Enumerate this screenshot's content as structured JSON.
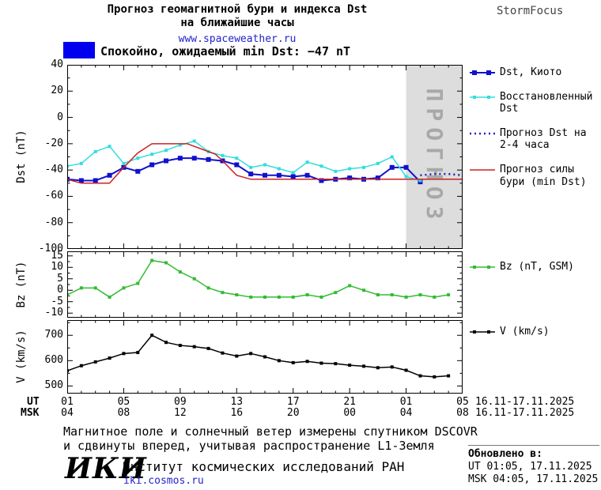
{
  "header": {
    "title_line1": "Прогноз геомагнитной бури и индекса Dst",
    "title_line2": "на ближайшие часы",
    "site": "www.spaceweather.ru",
    "brand": "StormFocus"
  },
  "status": {
    "label": "Спокойно, ожидаемый min Dst: −47 nT",
    "swatch_color": "#0000ee"
  },
  "chart_data": [
    {
      "type": "line",
      "ylabel": "Dst (nT)",
      "ylim": [
        -100,
        40
      ],
      "yticks": [
        40,
        20,
        0,
        -20,
        -40,
        -60,
        -80,
        -100
      ],
      "yminor": 10,
      "forecast": true,
      "series": [
        {
          "name": "Dst, Киото",
          "color": "#1111cc",
          "width": 2,
          "marker": "square",
          "marker_size": 6,
          "x": [
            1,
            2,
            3,
            4,
            5,
            6,
            7,
            8,
            9,
            10,
            11,
            12,
            13,
            14,
            15,
            16,
            17,
            18,
            19,
            20,
            21,
            22,
            23,
            24,
            25,
            26
          ],
          "y": [
            -47,
            -48,
            -48,
            -44,
            -38,
            -41,
            -36,
            -33,
            -31,
            -31,
            -32,
            -33,
            -36,
            -43,
            -44,
            -44,
            -45,
            -44,
            -48,
            -47,
            -46,
            -47,
            -46,
            -38,
            -38,
            -49
          ]
        },
        {
          "name": "Восстановленный Dst",
          "color": "#33dddd",
          "width": 1.5,
          "marker": "square",
          "marker_size": 4,
          "x": [
            1,
            2,
            3,
            4,
            5,
            6,
            7,
            8,
            9,
            10,
            11,
            12,
            13,
            14,
            15,
            16,
            17,
            18,
            19,
            20,
            21,
            22,
            23,
            24,
            25,
            26
          ],
          "y": [
            -37,
            -35,
            -26,
            -22,
            -35,
            -31,
            -28,
            -25,
            -21,
            -18,
            -26,
            -29,
            -31,
            -38,
            -36,
            -39,
            -42,
            -34,
            -37,
            -41,
            -39,
            -38,
            -35,
            -30,
            -45,
            -48
          ]
        },
        {
          "name": "Прогноз Dst на 2-4 часа",
          "color": "#2222bb",
          "width": 2.5,
          "dash": "2 4",
          "marker": "none",
          "x": [
            26,
            27,
            28,
            29
          ],
          "y": [
            -44,
            -43,
            -43,
            -44
          ]
        },
        {
          "name": "Прогноз силы бури (min Dst)",
          "color": "#cc2222",
          "width": 1.5,
          "marker": "none",
          "x": [
            1,
            2,
            4,
            5,
            6,
            7,
            9.5,
            10.5,
            11.5,
            12,
            13,
            14,
            29
          ],
          "y": [
            -47,
            -50,
            -50,
            -38,
            -27,
            -20,
            -20,
            -24,
            -28,
            -33,
            -44,
            -47,
            -47
          ]
        }
      ]
    },
    {
      "type": "line",
      "ylabel": "Bz (nT)",
      "ylim": [
        -12,
        17
      ],
      "yticks": [
        15,
        10,
        5,
        0,
        -5,
        -10
      ],
      "yminor": 2.5,
      "series": [
        {
          "name": "Bz (nT, GSM)",
          "color": "#33bb33",
          "width": 1.5,
          "marker": "square",
          "marker_size": 4,
          "x": [
            1,
            2,
            3,
            4,
            5,
            6,
            7,
            8,
            9,
            10,
            11,
            12,
            13,
            14,
            15,
            16,
            17,
            18,
            19,
            20,
            21,
            22,
            23,
            24,
            25,
            26,
            27,
            28
          ],
          "y": [
            -2,
            1,
            1,
            -3,
            1,
            3,
            13,
            12,
            8,
            5,
            1,
            -1,
            -2,
            -3,
            -3,
            -3,
            -3,
            -2,
            -3,
            -1,
            2,
            0,
            -2,
            -2,
            -3,
            -2,
            -3,
            -2
          ]
        }
      ]
    },
    {
      "type": "line",
      "ylabel": "V (km/s)",
      "ylim": [
        470,
        760
      ],
      "yticks": [
        700,
        600,
        500
      ],
      "yminor": 50,
      "series": [
        {
          "name": "V (km/s)",
          "color": "#000000",
          "width": 1.5,
          "marker": "square",
          "marker_size": 4,
          "x": [
            1,
            2,
            3,
            4,
            5,
            6,
            7,
            8,
            9,
            10,
            11,
            12,
            13,
            14,
            15,
            16,
            17,
            18,
            19,
            20,
            21,
            22,
            23,
            24,
            25,
            26,
            27,
            28
          ],
          "y": [
            560,
            580,
            595,
            610,
            628,
            632,
            700,
            672,
            660,
            655,
            648,
            630,
            618,
            628,
            615,
            600,
            592,
            597,
            590,
            588,
            582,
            578,
            572,
            575,
            562,
            540,
            536,
            540
          ]
        }
      ]
    }
  ],
  "xaxis": {
    "xlim": [
      1,
      29
    ],
    "ticks": [
      1,
      5,
      9,
      13,
      17,
      21,
      25,
      29
    ],
    "ut_label": "UT",
    "msk_label": "MSK",
    "ut_ticks": [
      "01",
      "05",
      "09",
      "13",
      "17",
      "21",
      "01",
      "05"
    ],
    "msk_ticks": [
      "04",
      "08",
      "12",
      "16",
      "20",
      "00",
      "04",
      "08"
    ],
    "ut_daterange": "16.11-17.11.2025",
    "msk_daterange": "16.11-17.11.2025"
  },
  "forecast_region": {
    "x_start": 25,
    "x_end": 29,
    "label": "ПРОГНОЗ",
    "fill": "#dddddd",
    "text_color": "#a8a8a8"
  },
  "footer": {
    "note_line1": "Магнитное поле и солнечный ветер измерены спутником DSCOVR",
    "note_line2": "и сдвинуты вперед, учитывая распространение L1-Земля",
    "logo": "ИКИ",
    "institute": "Институт космических исследований РАН",
    "site": "iki.cosmos.ru",
    "updated_label": "Обновлено в:",
    "updated_ut": "UT  01:05, 17.11.2025",
    "updated_msk": "MSK 04:05, 17.11.2025"
  }
}
